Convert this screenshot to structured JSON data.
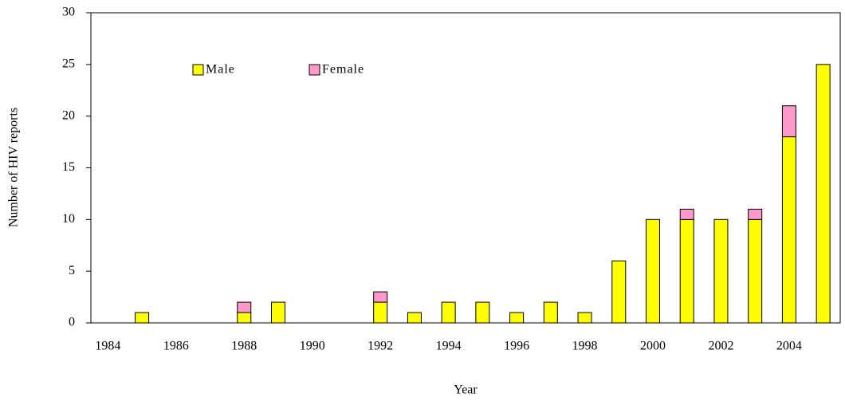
{
  "chart_data": {
    "type": "stacked-bar",
    "xlabel": "Year",
    "ylabel": "Number of HIV reports",
    "categories": [
      "1984",
      null,
      "1986",
      null,
      "1988",
      null,
      "1990",
      null,
      "1992",
      null,
      "1994",
      null,
      "1996",
      null,
      "1998",
      null,
      "2000",
      null,
      "2002",
      null,
      "2004",
      null
    ],
    "series": [
      {
        "name": "Male",
        "color": "#ffff00",
        "values": [
          0,
          1,
          0,
          0,
          1,
          2,
          0,
          0,
          2,
          1,
          2,
          2,
          1,
          2,
          1,
          6,
          10,
          10,
          10,
          10,
          18,
          25
        ]
      },
      {
        "name": "Female",
        "color": "#ff99cc",
        "values": [
          0,
          0,
          0,
          0,
          1,
          0,
          0,
          0,
          1,
          0,
          0,
          0,
          0,
          0,
          0,
          0,
          0,
          1,
          0,
          1,
          3,
          0
        ]
      }
    ],
    "ylim": [
      0,
      30
    ],
    "yticks": [
      0,
      5,
      10,
      15,
      20,
      25,
      30
    ]
  }
}
